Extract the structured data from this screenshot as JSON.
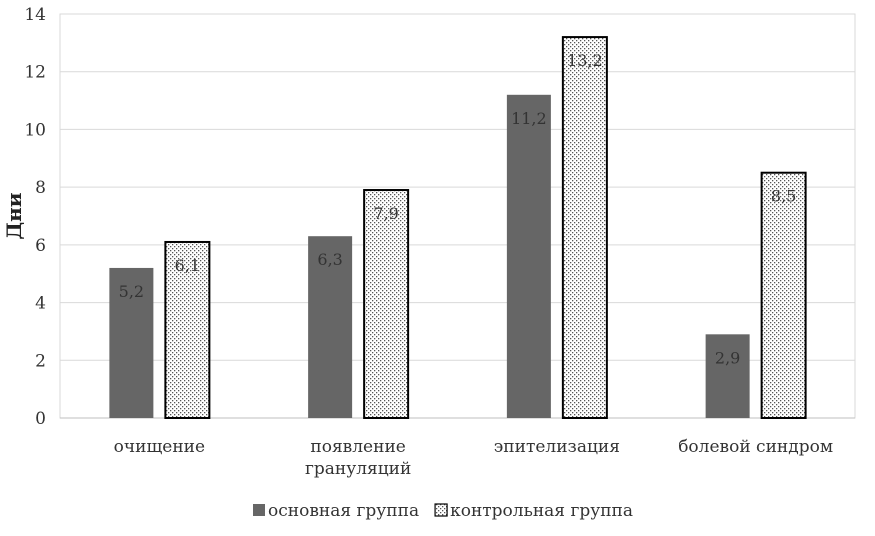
{
  "chart_data": {
    "type": "bar",
    "ylabel": "Дни",
    "xlabel": "",
    "title": "",
    "ylim": [
      0,
      14
    ],
    "y_ticks": [
      "0",
      "2",
      "4",
      "6",
      "8",
      "10",
      "12",
      "14"
    ],
    "grid": true,
    "legend_position": "bottom",
    "categories": [
      [
        "очищение"
      ],
      [
        "появление",
        "грануляций"
      ],
      [
        "эпителизация"
      ],
      [
        "болевой синдром"
      ]
    ],
    "series": [
      {
        "name": "основная группа",
        "values": [
          5.2,
          6.3,
          11.2,
          2.9
        ],
        "labels": [
          "5,2",
          "6,3",
          "11,2",
          "2,9"
        ],
        "color": "#666666",
        "pattern": "solid"
      },
      {
        "name": "контрольная группа",
        "values": [
          6.1,
          7.9,
          13.2,
          8.5
        ],
        "labels": [
          "6,1",
          "7,9",
          "13,2",
          "8,5"
        ],
        "color": "#000000",
        "pattern": "dotted"
      }
    ]
  }
}
